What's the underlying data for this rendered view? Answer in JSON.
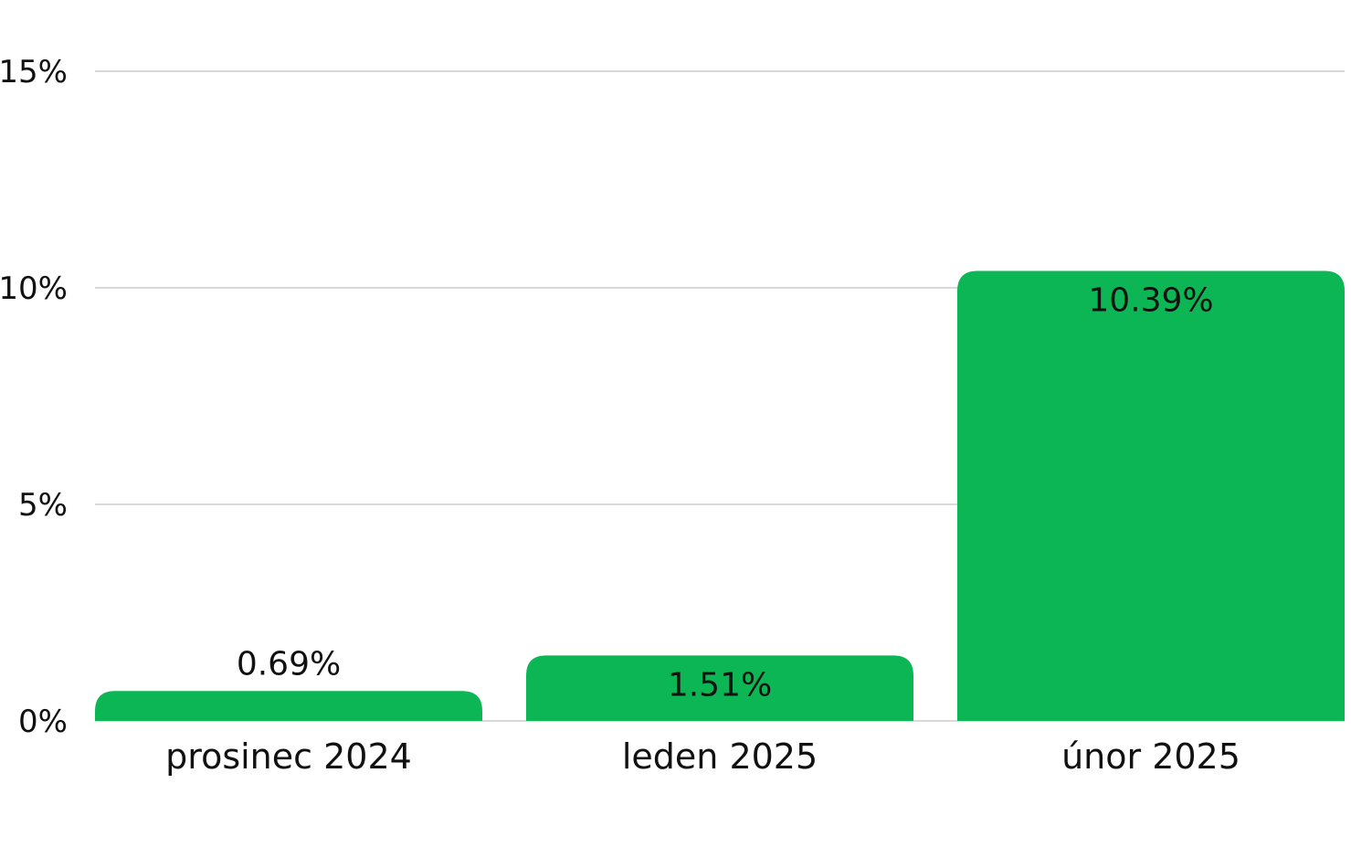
{
  "chart_data": {
    "type": "bar",
    "categories": [
      "prosinec 2024",
      "leden 2025",
      "únor 2025"
    ],
    "values": [
      0.69,
      1.51,
      10.39
    ],
    "data_labels": [
      "0.69%",
      "1.51%",
      "10.39%"
    ],
    "ylim": [
      0,
      15
    ],
    "yticks": [
      0,
      5,
      10,
      15
    ],
    "ytick_labels": [
      "0%",
      "5%",
      "10%",
      "15%"
    ],
    "grid": true,
    "bar_color": "#0db655",
    "grid_color": "#d9d9d9"
  }
}
